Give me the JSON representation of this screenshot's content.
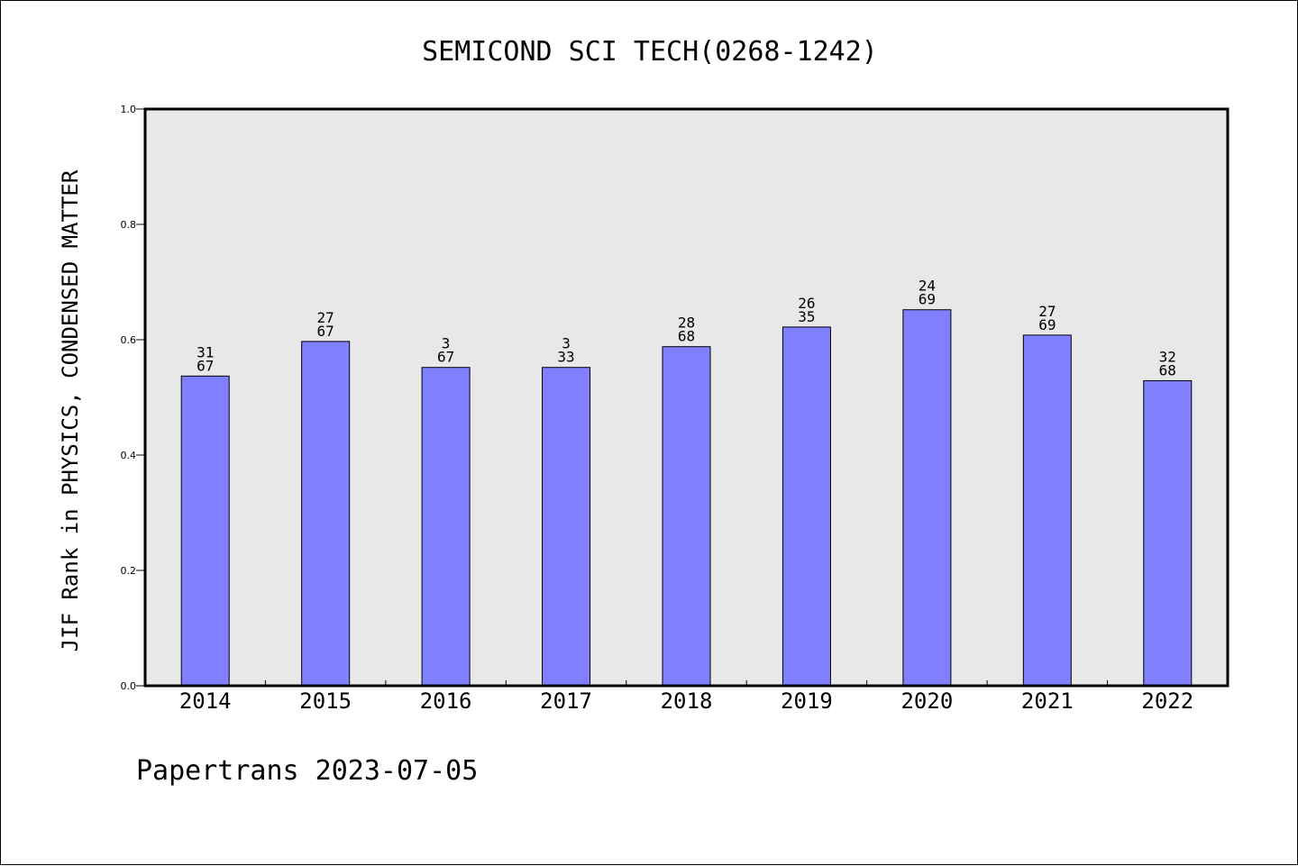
{
  "chart_data": {
    "type": "bar",
    "title": "SEMICOND SCI TECH(0268-1242)",
    "ylabel": "JIF Rank in PHYSICS, CONDENSED MATTER",
    "xlabel": "",
    "ylim": [
      0,
      1.0
    ],
    "yticks": [
      "0.0",
      "0.2",
      "0.4",
      "0.6",
      "0.8",
      "1.0"
    ],
    "grid": false,
    "categories": [
      "2014",
      "2015",
      "2016",
      "2017",
      "2018",
      "2019",
      "2020",
      "2021",
      "2022"
    ],
    "values": [
      0.537,
      0.597,
      0.552,
      0.552,
      0.588,
      0.622,
      0.652,
      0.608,
      0.529
    ],
    "bar_labels": [
      {
        "rank": "31",
        "total": "67"
      },
      {
        "rank": "27",
        "total": "67"
      },
      {
        "rank": "3",
        "total": "67"
      },
      {
        "rank": "3",
        "total": "33"
      },
      {
        "rank": "28",
        "total": "68"
      },
      {
        "rank": "26",
        "total": "35"
      },
      {
        "rank": "24",
        "total": "69"
      },
      {
        "rank": "27",
        "total": "69"
      },
      {
        "rank": "32",
        "total": "68"
      }
    ],
    "colors": {
      "bar": "#8080ff",
      "plot_bg": "#e8e8e8",
      "axis": "#000000"
    }
  },
  "footer": "Papertrans 2023-07-05"
}
